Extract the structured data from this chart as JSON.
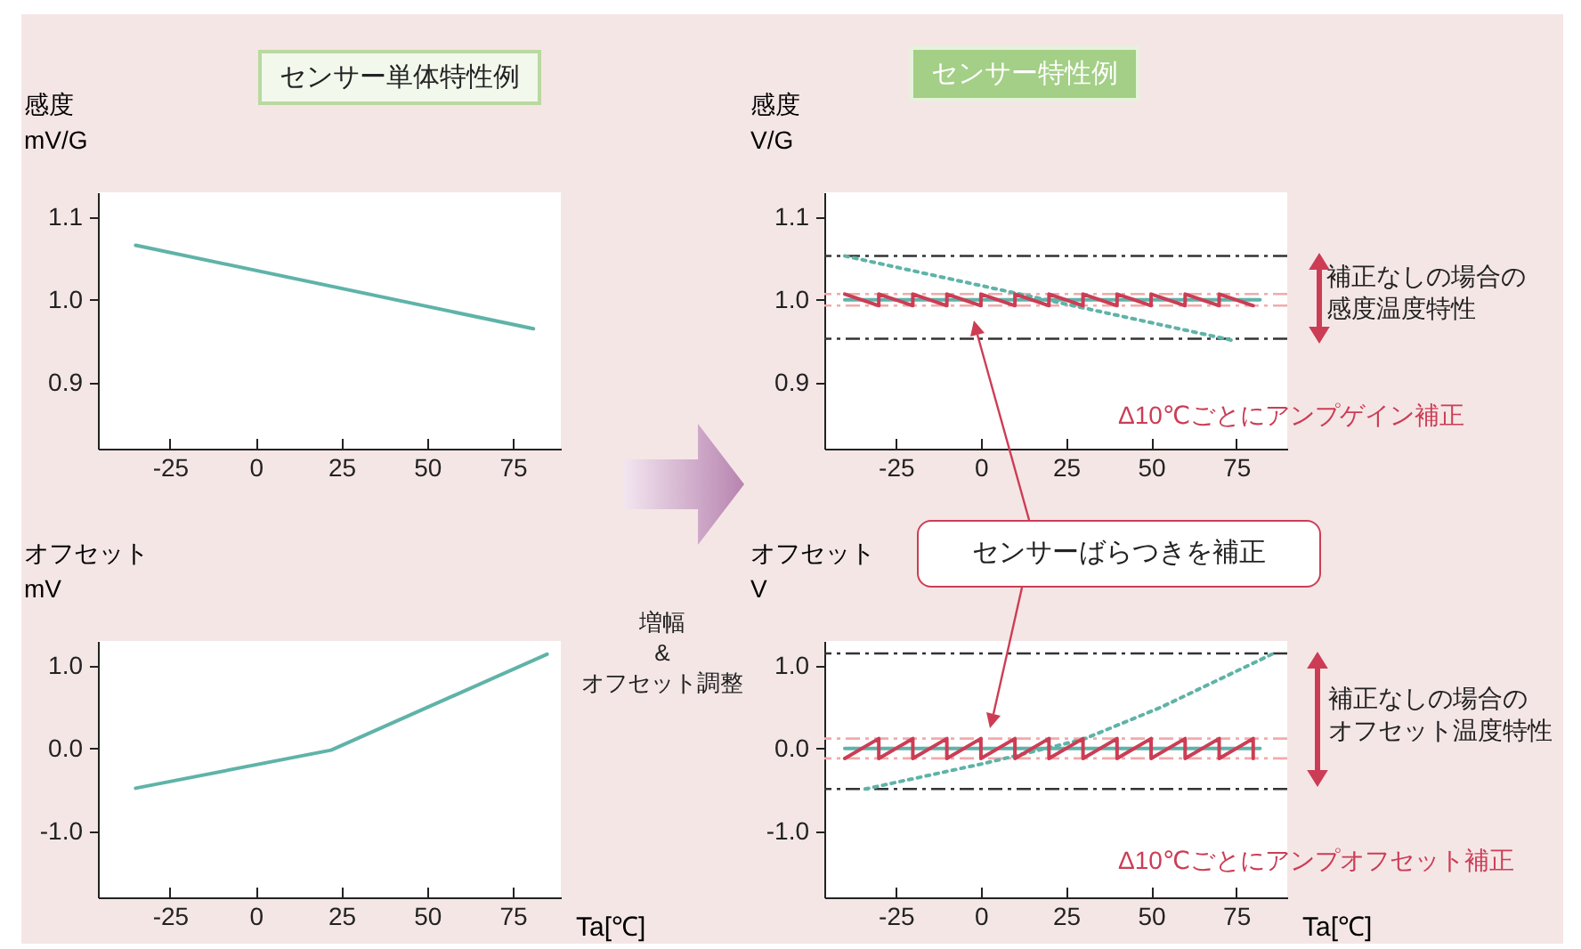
{
  "chart_data": [
    {
      "type": "line",
      "title": "センサー単体特性例",
      "ylabel": "感度\nmV/G",
      "xlim": [
        -46,
        89
      ],
      "ylim": [
        0.82,
        1.13
      ],
      "xticks": [
        -25,
        0,
        25,
        50,
        75
      ],
      "yticks": [
        {
          "value": 0.9,
          "label": "0.9"
        },
        {
          "value": 1,
          "label": "1.0"
        },
        {
          "value": 1.1,
          "label": "1.1"
        }
      ],
      "series": [
        {
          "color": "#5fb3a8",
          "x": [
            -35,
            81
          ],
          "values": [
            1.066,
            0.965
          ]
        }
      ]
    },
    {
      "type": "line",
      "title": "センサー特性例",
      "ylabel": "感度\nV/G",
      "xlim": [
        -46,
        90
      ],
      "ylim": [
        0.82,
        1.13
      ],
      "xticks": [
        -25,
        0,
        25,
        50,
        75
      ],
      "yticks": [
        {
          "value": 0.9,
          "label": "0.9"
        },
        {
          "value": 1,
          "label": "1.0"
        },
        {
          "value": 1.1,
          "label": "1.1"
        }
      ],
      "series": [
        {
          "color": "#5fb3a8",
          "x": [
            -40,
            82
          ],
          "values": [
            1,
            1
          ]
        },
        {
          "color": "#5fb3a8",
          "line_style": "dotted",
          "x": [
            -40,
            75
          ],
          "values": [
            1.053,
            0.95
          ]
        },
        {
          "color": "#cc3d55",
          "x": [
            -40,
            -30,
            -30,
            -20,
            -20,
            -10,
            -10,
            0,
            0,
            10,
            10,
            20,
            20,
            30,
            30,
            40,
            40,
            50,
            50,
            60,
            60,
            70,
            70,
            80
          ],
          "values": [
            1.007,
            0.993,
            1.007,
            0.993,
            1.007,
            0.993,
            1.007,
            0.993,
            1.007,
            0.993,
            1.007,
            0.993,
            1.007,
            0.993,
            1.007,
            0.993,
            1.007,
            0.993,
            1.007,
            0.993,
            1.007,
            0.993,
            1.007,
            0.993
          ]
        }
      ],
      "ref_lines": [
        {
          "axis": "y",
          "value": 1.053,
          "color": "#333333",
          "line_style": "dashed"
        },
        {
          "axis": "y",
          "value": 0.953,
          "color": "#333333",
          "line_style": "dashed"
        },
        {
          "axis": "y",
          "value": 1.007,
          "color": "#f2aaaa",
          "line_style": "dashed"
        },
        {
          "axis": "y",
          "value": 0.993,
          "color": "#f2aaaa",
          "line_style": "dashed"
        }
      ],
      "annotations": [
        "補正なしの場合の感度温度特性",
        "Δ10℃ごとにアンプゲイン補正"
      ]
    },
    {
      "type": "line",
      "xlabel": "Ta[℃]",
      "ylabel": "オフセット\nmV",
      "xlim": [
        -46,
        89
      ],
      "ylim": [
        -1.8,
        1.3
      ],
      "xticks": [
        -25,
        0,
        25,
        50,
        75
      ],
      "yticks": [
        {
          "value": -1,
          "label": "-1.0"
        },
        {
          "value": 0,
          "label": "0.0"
        },
        {
          "value": 1,
          "label": "1.0"
        }
      ],
      "series": [
        {
          "color": "#5fb3a8",
          "x": [
            -35,
            22,
            85
          ],
          "values": [
            -0.48,
            -0.02,
            1.14
          ]
        }
      ],
      "annotations": [
        "増幅\n&\nオフセット調整"
      ]
    },
    {
      "type": "line",
      "xlabel": "Ta[℃]",
      "ylabel": "オフセット\nV",
      "xlim": [
        -46,
        90
      ],
      "ylim": [
        -1.8,
        1.3
      ],
      "xticks": [
        -25,
        0,
        25,
        50,
        75
      ],
      "yticks": [
        {
          "value": -1,
          "label": "-1.0"
        },
        {
          "value": 0,
          "label": "0.0"
        },
        {
          "value": 1,
          "label": "1.0"
        }
      ],
      "series": [
        {
          "color": "#5fb3a8",
          "x": [
            -40,
            82
          ],
          "values": [
            0,
            0
          ]
        },
        {
          "color": "#5fb3a8",
          "line_style": "dotted",
          "x": [
            -34,
            1,
            30,
            53,
            86
          ],
          "values": [
            -0.49,
            -0.18,
            0.11,
            0.5,
            1.15
          ]
        },
        {
          "color": "#cc3d55",
          "x": [
            -40,
            -30,
            -30,
            -20,
            -20,
            -10,
            -10,
            0,
            0,
            10,
            10,
            20,
            20,
            30,
            30,
            40,
            40,
            50,
            50,
            60,
            60,
            70,
            70,
            80,
            80
          ],
          "values": [
            -0.12,
            0.12,
            -0.12,
            0.12,
            -0.12,
            0.12,
            -0.12,
            0.12,
            -0.12,
            0.12,
            -0.12,
            0.12,
            -0.12,
            0.12,
            -0.12,
            0.12,
            -0.12,
            0.12,
            -0.12,
            0.12,
            -0.12,
            0.12,
            -0.12,
            0.12,
            -0.12
          ]
        }
      ],
      "ref_lines": [
        {
          "axis": "y",
          "value": 1.15,
          "color": "#333333",
          "line_style": "dashed"
        },
        {
          "axis": "y",
          "value": -0.49,
          "color": "#333333",
          "line_style": "dashed"
        },
        {
          "axis": "y",
          "value": 0.12,
          "color": "#f2aaaa",
          "line_style": "dashed"
        },
        {
          "axis": "y",
          "value": -0.12,
          "color": "#f2aaaa",
          "line_style": "dashed"
        }
      ],
      "annotations": [
        "センサーばらつきを補正",
        "補正なしの場合のオフセット温度特性",
        "Δ10℃ごとにアンプオフセット補正"
      ]
    }
  ]
}
